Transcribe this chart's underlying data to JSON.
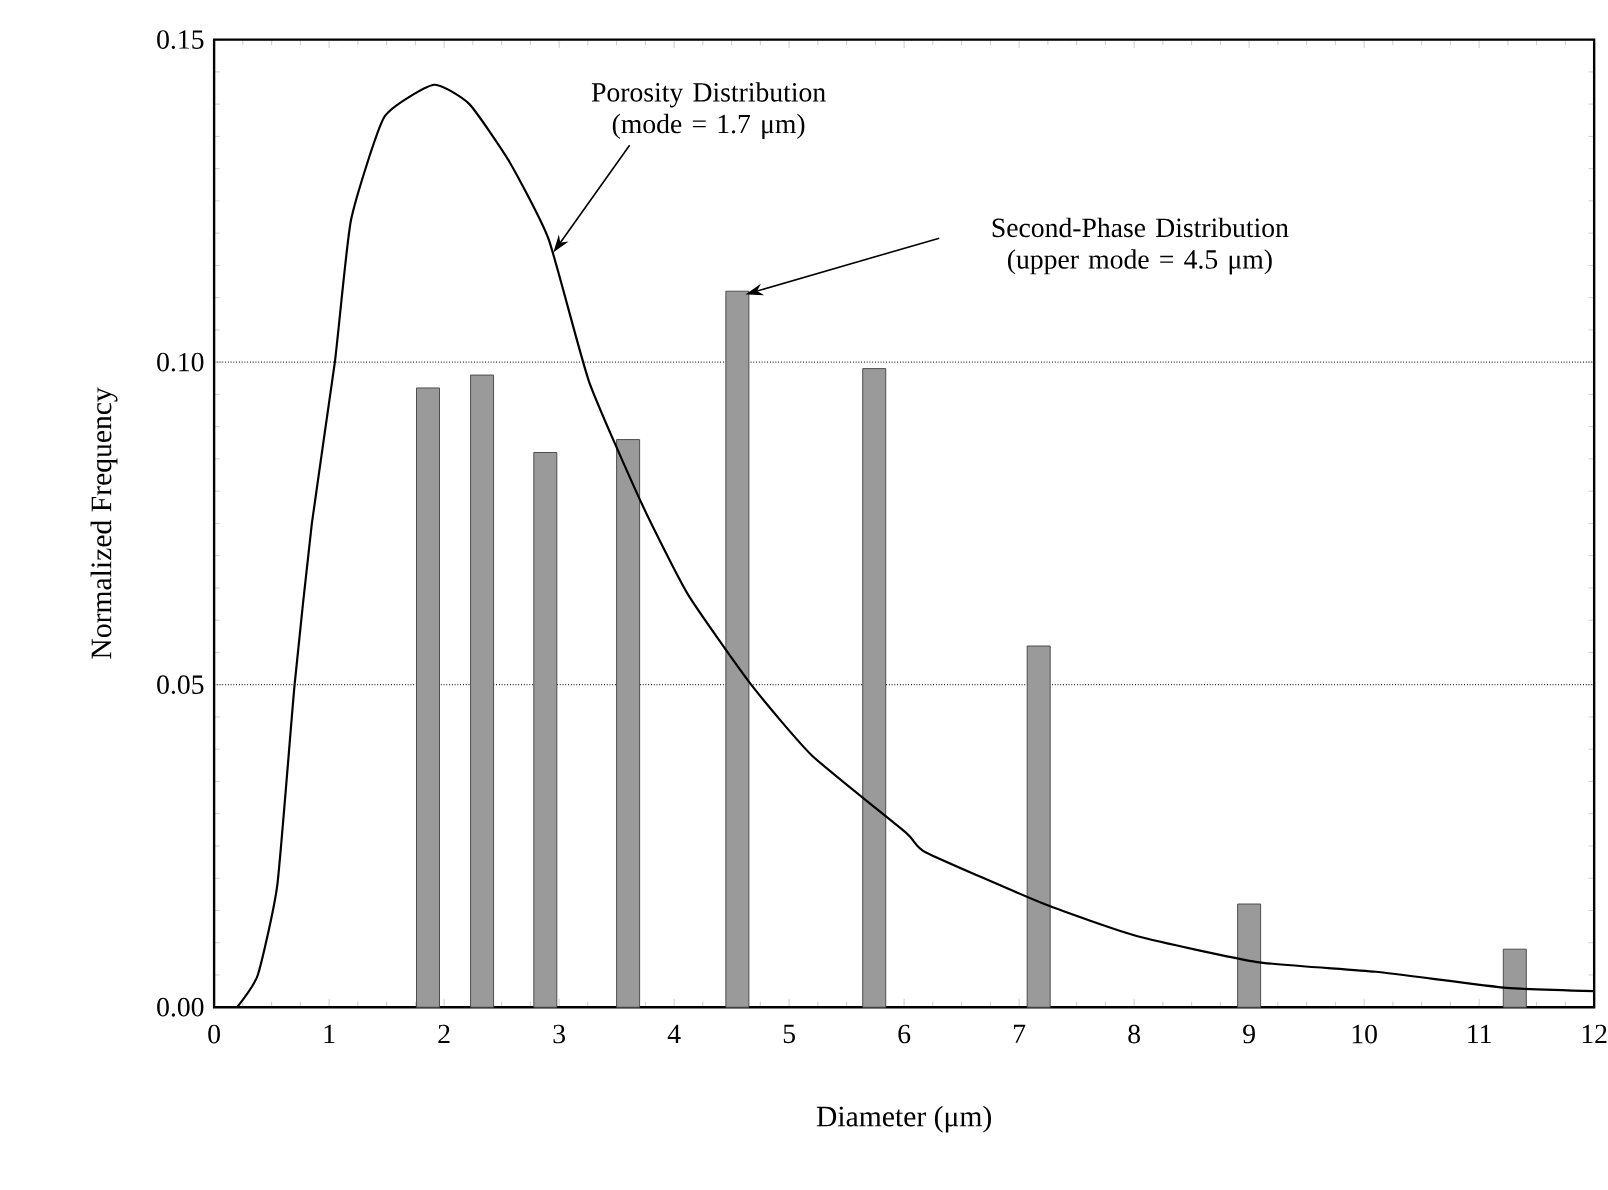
{
  "chart_data": {
    "type": "bar",
    "xlabel": "Diameter (μm)",
    "ylabel": "Normalized Frequency",
    "series": [
      {
        "color": "#9a9a9a",
        "x": [
          1.86,
          2.33,
          2.88,
          3.6,
          4.55,
          5.74,
          7.17,
          9.0,
          11.31
        ],
        "values": [
          0.096,
          0.098,
          0.086,
          0.088,
          0.111,
          0.099,
          0.056,
          0.016,
          0.009
        ]
      },
      {
        "type": "line",
        "color": "#000000",
        "x": [
          0.2,
          0.38,
          0.55,
          0.7,
          0.85,
          1.05,
          1.19,
          1.48,
          1.91,
          2.22,
          2.57,
          2.91,
          3.26,
          3.72,
          4.12,
          4.67,
          5.2,
          6.02,
          6.19,
          7.22,
          8.03,
          9.07,
          10.1,
          11.24,
          12.0
        ],
        "values": [
          0.0,
          0.005,
          0.019,
          0.05,
          0.075,
          0.1,
          0.122,
          0.138,
          0.143,
          0.14,
          0.131,
          0.119,
          0.097,
          0.078,
          0.064,
          0.05,
          0.039,
          0.027,
          0.024,
          0.016,
          0.011,
          0.007,
          0.0055,
          0.003,
          0.0025
        ]
      }
    ],
    "annotations": [
      {
        "text": "Porosity Distribution (mode = 1.7 μm)",
        "x": 2.95,
        "y": 0.117
      },
      "Second-Phase Distribution (upper mode = 4.5 μm)"
    ],
    "xlim": [
      0,
      12
    ],
    "ylim": [
      0,
      0.15
    ],
    "xticks": [
      0,
      1,
      2,
      3,
      4,
      5,
      6,
      7,
      8,
      9,
      10,
      11,
      12
    ],
    "yticks": [
      {
        "value": 0,
        "label": "0.00"
      },
      {
        "value": 0.05,
        "label": "0.05"
      },
      {
        "value": 0.1,
        "label": "0.10"
      },
      {
        "value": 0.15,
        "label": "0.15"
      }
    ],
    "grid": "y"
  }
}
